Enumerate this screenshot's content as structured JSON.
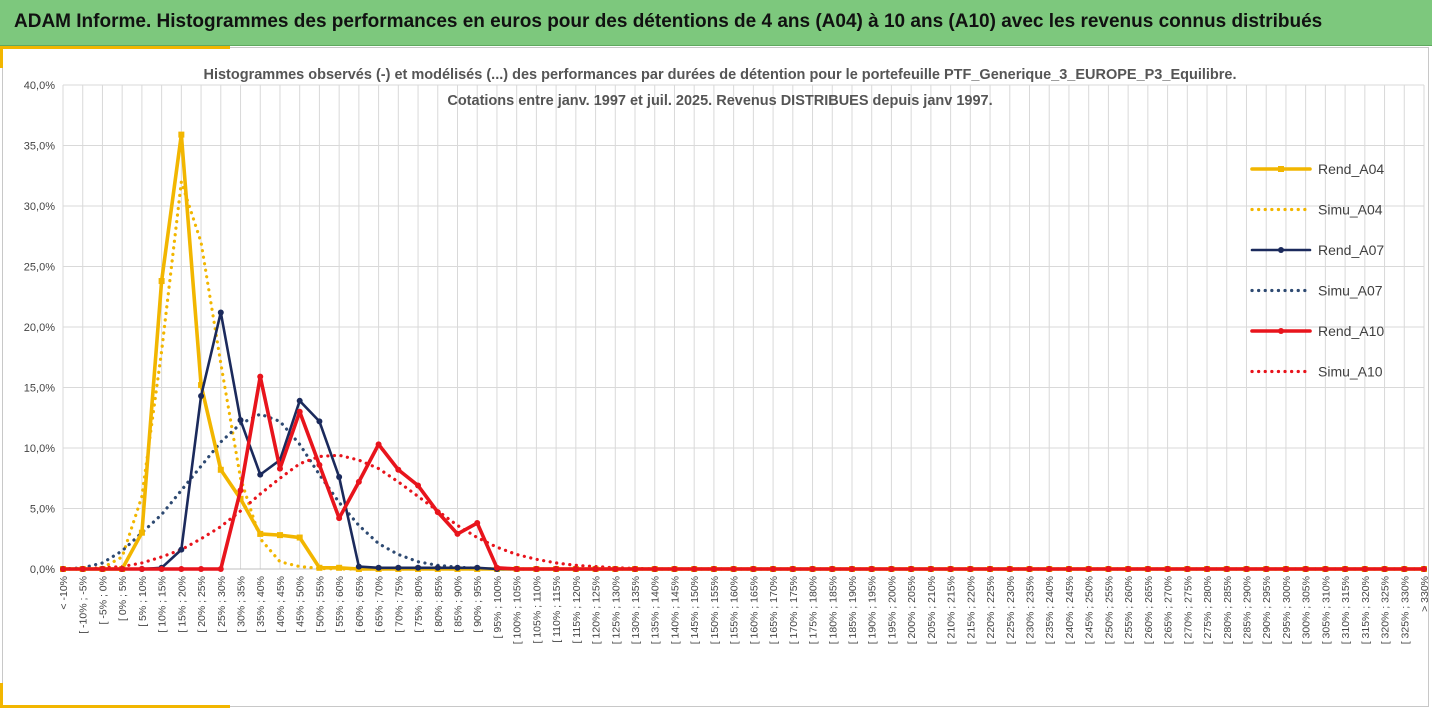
{
  "header": {
    "title": "ADAM Informe. Histogrammes des performances en euros pour des détentions de 4 ans (A04) à 10 ans (A10) avec les revenus connus distribués"
  },
  "chart_data": {
    "type": "line",
    "title": "Histogrammes observés (-) et modélisés (...) des performances par durées de détention pour  le portefeuille PTF_Generique_3_EUROPE_P3_Equilibre.",
    "subtitle": "Cotations entre janv. 1997 et juil. 2025. Revenus DISTRIBUES depuis janv 1997.",
    "xlabel": "",
    "ylabel": "",
    "ylim": [
      0,
      0.4
    ],
    "yticks": [
      0,
      0.05,
      0.1,
      0.15,
      0.2,
      0.25,
      0.3,
      0.35,
      0.4
    ],
    "ytick_labels": [
      "0,0%",
      "5,0%",
      "10,0%",
      "15,0%",
      "20,0%",
      "25,0%",
      "30,0%",
      "35,0%",
      "40,0%"
    ],
    "categories": [
      "< -10%",
      "[ -10% ; -5%",
      "[ -5% ; 0%",
      "[ 0% ; 5%",
      "[ 5% ; 10%",
      "[ 10% ; 15%",
      "[ 15% ; 20%",
      "[ 20% ; 25%",
      "[ 25% ; 30%",
      "[ 30% ; 35%",
      "[ 35% ; 40%",
      "[ 40% ; 45%",
      "[ 45% ; 50%",
      "[ 50% ; 55%",
      "[ 55% ; 60%",
      "[ 60% ; 65%",
      "[ 65% ; 70%",
      "[ 70% ; 75%",
      "[ 75% ; 80%",
      "[ 80% ; 85%",
      "[ 85% ; 90%",
      "[ 90% ; 95%",
      "[ 95% ; 100%",
      "[ 100% ; 105%",
      "[ 105% ; 110%",
      "[ 110% ; 115%",
      "[ 115% ; 120%",
      "[ 120% ; 125%",
      "[ 125% ; 130%",
      "[ 130% ; 135%",
      "[ 135% ; 140%",
      "[ 140% ; 145%",
      "[ 145% ; 150%",
      "[ 150% ; 155%",
      "[ 155% ; 160%",
      "[ 160% ; 165%",
      "[ 165% ; 170%",
      "[ 170% ; 175%",
      "[ 175% ; 180%",
      "[ 180% ; 185%",
      "[ 185% ; 190%",
      "[ 190% ; 195%",
      "[ 195% ; 200%",
      "[ 200% ; 205%",
      "[ 205% ; 210%",
      "[ 210% ; 215%",
      "[ 215% ; 220%",
      "[ 220% ; 225%",
      "[ 225% ; 230%",
      "[ 230% ; 235%",
      "[ 235% ; 240%",
      "[ 240% ; 245%",
      "[ 245% ; 250%",
      "[ 250% ; 255%",
      "[ 255% ; 260%",
      "[ 260% ; 265%",
      "[ 265% ; 270%",
      "[ 270% ; 275%",
      "[ 275% ; 280%",
      "[ 280% ; 285%",
      "[ 285% ; 290%",
      "[ 290% ; 295%",
      "[ 295% ; 300%",
      "[ 300% ; 305%",
      "[ 305% ; 310%",
      "[ 310% ; 315%",
      "[ 315% ; 320%",
      "[ 320% ; 325%",
      "[ 325% ; 330%",
      "> 330%"
    ],
    "series": [
      {
        "name": "Rend_A04",
        "style": "solid",
        "marker": "square",
        "color": "#f2b600",
        "values": [
          0,
          0,
          0,
          0,
          0.03,
          0.238,
          0.359,
          0.152,
          0.082,
          0.058,
          0.029,
          0.028,
          0.026,
          0.001,
          0.001,
          0,
          0,
          0,
          0,
          0,
          0,
          0,
          0,
          0,
          0,
          0,
          0,
          0,
          0,
          0,
          0,
          0,
          0,
          0,
          0,
          0,
          0,
          0,
          0,
          0,
          0,
          0,
          0,
          0,
          0,
          0,
          0,
          0,
          0,
          0,
          0,
          0,
          0,
          0,
          0,
          0,
          0,
          0,
          0,
          0,
          0,
          0,
          0,
          0,
          0,
          0,
          0,
          0,
          0,
          0
        ]
      },
      {
        "name": "Simu_A04",
        "style": "dotted",
        "marker": "none",
        "color": "#f2b600",
        "values": [
          0,
          0,
          0.001,
          0.01,
          0.06,
          0.18,
          0.32,
          0.27,
          0.17,
          0.075,
          0.025,
          0.006,
          0.002,
          0.0005,
          0,
          0,
          0,
          0,
          0,
          0,
          0,
          0,
          0,
          0,
          0,
          0,
          0,
          0,
          0,
          0,
          0,
          0,
          0,
          0,
          0,
          0,
          0,
          0,
          0,
          0,
          0,
          0,
          0,
          0,
          0,
          0,
          0,
          0,
          0,
          0,
          0,
          0,
          0,
          0,
          0,
          0,
          0,
          0,
          0,
          0,
          0,
          0,
          0,
          0,
          0,
          0,
          0,
          0,
          0,
          0
        ]
      },
      {
        "name": "Rend_A07",
        "style": "solid",
        "marker": "circle",
        "color": "#1b2a5c",
        "values": [
          0,
          0,
          0,
          0,
          0,
          0.001,
          0.016,
          0.143,
          0.212,
          0.123,
          0.078,
          0.09,
          0.139,
          0.122,
          0.076,
          0.002,
          0.001,
          0.001,
          0.001,
          0.001,
          0.001,
          0.001,
          0,
          0,
          0,
          0,
          0,
          0,
          0,
          0,
          0,
          0,
          0,
          0,
          0,
          0,
          0,
          0,
          0,
          0,
          0,
          0,
          0,
          0,
          0,
          0,
          0,
          0,
          0,
          0,
          0,
          0,
          0,
          0,
          0,
          0,
          0,
          0,
          0,
          0,
          0,
          0,
          0,
          0,
          0,
          0,
          0,
          0,
          0,
          0
        ]
      },
      {
        "name": "Simu_A07",
        "style": "dotted",
        "marker": "none",
        "color": "#2e4a72",
        "values": [
          0,
          0.001,
          0.005,
          0.015,
          0.03,
          0.045,
          0.065,
          0.085,
          0.105,
          0.12,
          0.128,
          0.122,
          0.103,
          0.078,
          0.055,
          0.036,
          0.021,
          0.012,
          0.006,
          0.003,
          0.0015,
          0.0005,
          0,
          0,
          0,
          0,
          0,
          0,
          0,
          0,
          0,
          0,
          0,
          0,
          0,
          0,
          0,
          0,
          0,
          0,
          0,
          0,
          0,
          0,
          0,
          0,
          0,
          0,
          0,
          0,
          0,
          0,
          0,
          0,
          0,
          0,
          0,
          0,
          0,
          0,
          0,
          0,
          0,
          0,
          0,
          0,
          0,
          0,
          0,
          0
        ]
      },
      {
        "name": "Rend_A10",
        "style": "solid",
        "marker": "circle",
        "color": "#e8141c",
        "values": [
          0,
          0,
          0,
          0,
          0,
          0,
          0,
          0,
          0,
          0.065,
          0.159,
          0.083,
          0.13,
          0.086,
          0.042,
          0.072,
          0.103,
          0.082,
          0.069,
          0.047,
          0.029,
          0.038,
          0.001,
          0,
          0,
          0,
          0,
          0,
          0,
          0,
          0,
          0,
          0,
          0,
          0,
          0,
          0,
          0,
          0,
          0,
          0,
          0,
          0,
          0,
          0,
          0,
          0,
          0,
          0,
          0,
          0,
          0,
          0,
          0,
          0,
          0,
          0,
          0,
          0,
          0,
          0,
          0,
          0,
          0,
          0,
          0,
          0,
          0,
          0,
          0
        ]
      },
      {
        "name": "Simu_A10",
        "style": "dotted",
        "marker": "none",
        "color": "#e8141c",
        "values": [
          0,
          0,
          0.001,
          0.002,
          0.005,
          0.01,
          0.016,
          0.025,
          0.035,
          0.048,
          0.062,
          0.075,
          0.087,
          0.093,
          0.094,
          0.09,
          0.083,
          0.072,
          0.06,
          0.048,
          0.036,
          0.026,
          0.018,
          0.012,
          0.008,
          0.005,
          0.003,
          0.002,
          0.001,
          0.0005,
          0,
          0,
          0,
          0,
          0,
          0,
          0,
          0,
          0,
          0,
          0,
          0,
          0,
          0,
          0,
          0,
          0,
          0,
          0,
          0,
          0,
          0,
          0,
          0,
          0,
          0,
          0,
          0,
          0,
          0,
          0,
          0,
          0,
          0,
          0,
          0,
          0,
          0,
          0,
          0
        ]
      }
    ],
    "grid": true,
    "legend_position": "right"
  }
}
